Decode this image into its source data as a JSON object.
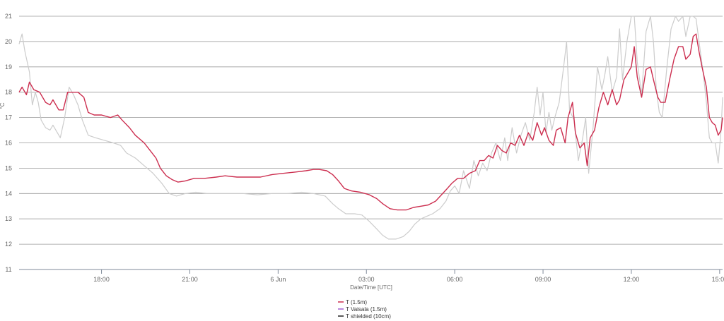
{
  "chart_data": {
    "type": "line",
    "title": "",
    "xlabel": "Date/Time [UTC]",
    "ylabel": "°C",
    "xlim": [
      15.2,
      39.1
    ],
    "ylim": [
      11,
      21
    ],
    "y_ticks": [
      11,
      12,
      13,
      14,
      15,
      16,
      17,
      18,
      19,
      20,
      21
    ],
    "x_ticks": [
      {
        "x": 18,
        "label": "18:00"
      },
      {
        "x": 21,
        "label": "21:00"
      },
      {
        "x": 24,
        "label": "6 Jun"
      },
      {
        "x": 27,
        "label": "03:00"
      },
      {
        "x": 30,
        "label": "06:00"
      },
      {
        "x": 33,
        "label": "09:00"
      },
      {
        "x": 36,
        "label": "12:00"
      },
      {
        "x": 39,
        "label": "15:00"
      }
    ],
    "grid": true,
    "legend_position": "bottom-center",
    "series": [
      {
        "name": "T (1.5m)",
        "color": "#cc2e4f",
        "points": [
          [
            15.2,
            18.0
          ],
          [
            15.3,
            18.2
          ],
          [
            15.45,
            17.9
          ],
          [
            15.55,
            18.4
          ],
          [
            15.7,
            18.1
          ],
          [
            15.9,
            18.0
          ],
          [
            16.1,
            17.6
          ],
          [
            16.25,
            17.5
          ],
          [
            16.35,
            17.7
          ],
          [
            16.55,
            17.3
          ],
          [
            16.7,
            17.3
          ],
          [
            16.85,
            18.0
          ],
          [
            17.0,
            18.0
          ],
          [
            17.2,
            18.0
          ],
          [
            17.4,
            17.8
          ],
          [
            17.55,
            17.2
          ],
          [
            17.75,
            17.1
          ],
          [
            18.0,
            17.1
          ],
          [
            18.3,
            17.0
          ],
          [
            18.55,
            17.1
          ],
          [
            18.7,
            16.9
          ],
          [
            18.95,
            16.6
          ],
          [
            19.15,
            16.3
          ],
          [
            19.45,
            16.0
          ],
          [
            19.65,
            15.7
          ],
          [
            19.85,
            15.4
          ],
          [
            20.0,
            15.0
          ],
          [
            20.2,
            14.7
          ],
          [
            20.4,
            14.55
          ],
          [
            20.6,
            14.45
          ],
          [
            20.85,
            14.5
          ],
          [
            21.15,
            14.6
          ],
          [
            21.5,
            14.6
          ],
          [
            21.9,
            14.65
          ],
          [
            22.2,
            14.7
          ],
          [
            22.6,
            14.65
          ],
          [
            23.0,
            14.65
          ],
          [
            23.4,
            14.65
          ],
          [
            23.8,
            14.75
          ],
          [
            24.2,
            14.8
          ],
          [
            24.6,
            14.85
          ],
          [
            24.95,
            14.9
          ],
          [
            25.2,
            14.95
          ],
          [
            25.4,
            14.95
          ],
          [
            25.65,
            14.9
          ],
          [
            25.85,
            14.75
          ],
          [
            26.05,
            14.5
          ],
          [
            26.25,
            14.2
          ],
          [
            26.5,
            14.1
          ],
          [
            26.8,
            14.05
          ],
          [
            27.1,
            13.95
          ],
          [
            27.35,
            13.8
          ],
          [
            27.55,
            13.6
          ],
          [
            27.8,
            13.4
          ],
          [
            28.05,
            13.35
          ],
          [
            28.35,
            13.35
          ],
          [
            28.6,
            13.45
          ],
          [
            28.85,
            13.5
          ],
          [
            29.1,
            13.55
          ],
          [
            29.35,
            13.7
          ],
          [
            29.55,
            13.95
          ],
          [
            29.75,
            14.2
          ],
          [
            29.9,
            14.4
          ],
          [
            30.1,
            14.6
          ],
          [
            30.3,
            14.6
          ],
          [
            30.5,
            14.8
          ],
          [
            30.7,
            14.9
          ],
          [
            30.85,
            15.3
          ],
          [
            31.0,
            15.3
          ],
          [
            31.15,
            15.5
          ],
          [
            31.3,
            15.4
          ],
          [
            31.45,
            15.9
          ],
          [
            31.6,
            15.7
          ],
          [
            31.75,
            15.6
          ],
          [
            31.9,
            16.0
          ],
          [
            32.05,
            15.9
          ],
          [
            32.2,
            16.3
          ],
          [
            32.35,
            15.9
          ],
          [
            32.5,
            16.4
          ],
          [
            32.65,
            16.1
          ],
          [
            32.8,
            16.8
          ],
          [
            32.95,
            16.3
          ],
          [
            33.05,
            16.6
          ],
          [
            33.2,
            16.1
          ],
          [
            33.35,
            15.9
          ],
          [
            33.45,
            16.5
          ],
          [
            33.6,
            16.6
          ],
          [
            33.75,
            16.0
          ],
          [
            33.85,
            17.0
          ],
          [
            34.0,
            17.6
          ],
          [
            34.1,
            16.4
          ],
          [
            34.25,
            15.8
          ],
          [
            34.4,
            16.0
          ],
          [
            34.5,
            15.1
          ],
          [
            34.6,
            16.2
          ],
          [
            34.75,
            16.5
          ],
          [
            34.9,
            17.4
          ],
          [
            35.05,
            18.0
          ],
          [
            35.2,
            17.5
          ],
          [
            35.35,
            18.1
          ],
          [
            35.5,
            17.5
          ],
          [
            35.6,
            17.7
          ],
          [
            35.75,
            18.5
          ],
          [
            35.9,
            18.8
          ],
          [
            36.0,
            19.0
          ],
          [
            36.1,
            19.8
          ],
          [
            36.2,
            18.6
          ],
          [
            36.35,
            17.8
          ],
          [
            36.5,
            18.9
          ],
          [
            36.65,
            19.0
          ],
          [
            36.75,
            18.5
          ],
          [
            36.9,
            17.8
          ],
          [
            37.0,
            17.6
          ],
          [
            37.15,
            17.6
          ],
          [
            37.3,
            18.5
          ],
          [
            37.45,
            19.3
          ],
          [
            37.6,
            19.8
          ],
          [
            37.75,
            19.8
          ],
          [
            37.85,
            19.3
          ],
          [
            38.0,
            19.5
          ],
          [
            38.1,
            20.2
          ],
          [
            38.2,
            20.3
          ],
          [
            38.3,
            19.6
          ],
          [
            38.4,
            19.0
          ],
          [
            38.55,
            18.2
          ],
          [
            38.65,
            17.0
          ],
          [
            38.75,
            16.8
          ],
          [
            38.85,
            16.7
          ],
          [
            38.95,
            16.3
          ],
          [
            39.05,
            16.5
          ],
          [
            39.1,
            17.0
          ]
        ]
      },
      {
        "name": "T Vaisala (1.5m)",
        "color": "#a35fd0",
        "points": []
      },
      {
        "name": "T shielded (10cm)",
        "color": "#222222",
        "points": []
      },
      {
        "name": "",
        "color": "#cccccc",
        "points": [
          [
            15.2,
            19.9
          ],
          [
            15.3,
            20.3
          ],
          [
            15.4,
            19.6
          ],
          [
            15.55,
            18.8
          ],
          [
            15.65,
            17.5
          ],
          [
            15.75,
            18.0
          ],
          [
            15.85,
            17.6
          ],
          [
            15.95,
            16.9
          ],
          [
            16.1,
            16.6
          ],
          [
            16.25,
            16.5
          ],
          [
            16.35,
            16.7
          ],
          [
            16.5,
            16.4
          ],
          [
            16.6,
            16.2
          ],
          [
            16.75,
            17.0
          ],
          [
            16.9,
            18.2
          ],
          [
            17.05,
            17.9
          ],
          [
            17.2,
            17.5
          ],
          [
            17.35,
            16.9
          ],
          [
            17.55,
            16.3
          ],
          [
            17.8,
            16.2
          ],
          [
            18.1,
            16.1
          ],
          [
            18.4,
            16.0
          ],
          [
            18.65,
            15.9
          ],
          [
            18.85,
            15.6
          ],
          [
            19.15,
            15.4
          ],
          [
            19.45,
            15.1
          ],
          [
            19.75,
            14.8
          ],
          [
            20.05,
            14.4
          ],
          [
            20.3,
            14.0
          ],
          [
            20.55,
            13.9
          ],
          [
            20.85,
            14.0
          ],
          [
            21.2,
            14.05
          ],
          [
            21.6,
            14.0
          ],
          [
            22.2,
            14.0
          ],
          [
            22.8,
            14.0
          ],
          [
            23.3,
            13.95
          ],
          [
            23.8,
            14.0
          ],
          [
            24.3,
            14.0
          ],
          [
            24.8,
            14.05
          ],
          [
            25.2,
            14.0
          ],
          [
            25.6,
            13.9
          ],
          [
            25.85,
            13.6
          ],
          [
            26.05,
            13.4
          ],
          [
            26.3,
            13.2
          ],
          [
            26.6,
            13.2
          ],
          [
            26.85,
            13.15
          ],
          [
            27.1,
            12.9
          ],
          [
            27.35,
            12.6
          ],
          [
            27.55,
            12.35
          ],
          [
            27.75,
            12.2
          ],
          [
            28.0,
            12.2
          ],
          [
            28.25,
            12.3
          ],
          [
            28.45,
            12.5
          ],
          [
            28.65,
            12.8
          ],
          [
            28.85,
            13.0
          ],
          [
            29.05,
            13.1
          ],
          [
            29.25,
            13.2
          ],
          [
            29.5,
            13.4
          ],
          [
            29.7,
            13.7
          ],
          [
            29.85,
            14.1
          ],
          [
            30.0,
            14.3
          ],
          [
            30.15,
            14.0
          ],
          [
            30.3,
            14.9
          ],
          [
            30.5,
            14.2
          ],
          [
            30.65,
            15.3
          ],
          [
            30.8,
            14.7
          ],
          [
            30.95,
            15.2
          ],
          [
            31.1,
            14.9
          ],
          [
            31.25,
            15.6
          ],
          [
            31.4,
            16.0
          ],
          [
            31.55,
            15.3
          ],
          [
            31.7,
            16.2
          ],
          [
            31.8,
            15.3
          ],
          [
            31.95,
            16.6
          ],
          [
            32.1,
            15.6
          ],
          [
            32.25,
            16.3
          ],
          [
            32.4,
            16.8
          ],
          [
            32.55,
            16.1
          ],
          [
            32.7,
            17.2
          ],
          [
            32.8,
            18.2
          ],
          [
            32.9,
            17.1
          ],
          [
            33.0,
            18.0
          ],
          [
            33.1,
            16.4
          ],
          [
            33.2,
            17.2
          ],
          [
            33.3,
            16.5
          ],
          [
            33.4,
            17.0
          ],
          [
            33.55,
            17.6
          ],
          [
            33.7,
            19.0
          ],
          [
            33.8,
            20.0
          ],
          [
            33.9,
            17.3
          ],
          [
            34.05,
            16.9
          ],
          [
            34.2,
            15.3
          ],
          [
            34.35,
            16.2
          ],
          [
            34.45,
            17.0
          ],
          [
            34.55,
            14.8
          ],
          [
            34.7,
            16.6
          ],
          [
            34.85,
            19.0
          ],
          [
            35.0,
            18.1
          ],
          [
            35.1,
            18.7
          ],
          [
            35.2,
            19.4
          ],
          [
            35.35,
            18.0
          ],
          [
            35.5,
            18.6
          ],
          [
            35.6,
            20.5
          ],
          [
            35.7,
            18.5
          ],
          [
            35.85,
            20.0
          ],
          [
            36.0,
            21.0
          ],
          [
            36.1,
            21.0
          ],
          [
            36.2,
            19.2
          ],
          [
            36.35,
            17.9
          ],
          [
            36.5,
            20.4
          ],
          [
            36.65,
            21.0
          ],
          [
            36.75,
            20.0
          ],
          [
            36.85,
            18.1
          ],
          [
            36.95,
            17.2
          ],
          [
            37.05,
            17.0
          ],
          [
            37.2,
            18.9
          ],
          [
            37.35,
            20.5
          ],
          [
            37.5,
            21.0
          ],
          [
            37.6,
            20.8
          ],
          [
            37.75,
            21.0
          ],
          [
            37.85,
            20.2
          ],
          [
            38.0,
            21.0
          ],
          [
            38.1,
            21.0
          ],
          [
            38.2,
            20.9
          ],
          [
            38.3,
            20.0
          ],
          [
            38.45,
            18.7
          ],
          [
            38.55,
            17.6
          ],
          [
            38.65,
            16.2
          ],
          [
            38.75,
            16.0
          ],
          [
            38.85,
            16.0
          ],
          [
            38.95,
            15.2
          ],
          [
            39.05,
            16.5
          ],
          [
            39.1,
            17.8
          ]
        ]
      }
    ]
  }
}
